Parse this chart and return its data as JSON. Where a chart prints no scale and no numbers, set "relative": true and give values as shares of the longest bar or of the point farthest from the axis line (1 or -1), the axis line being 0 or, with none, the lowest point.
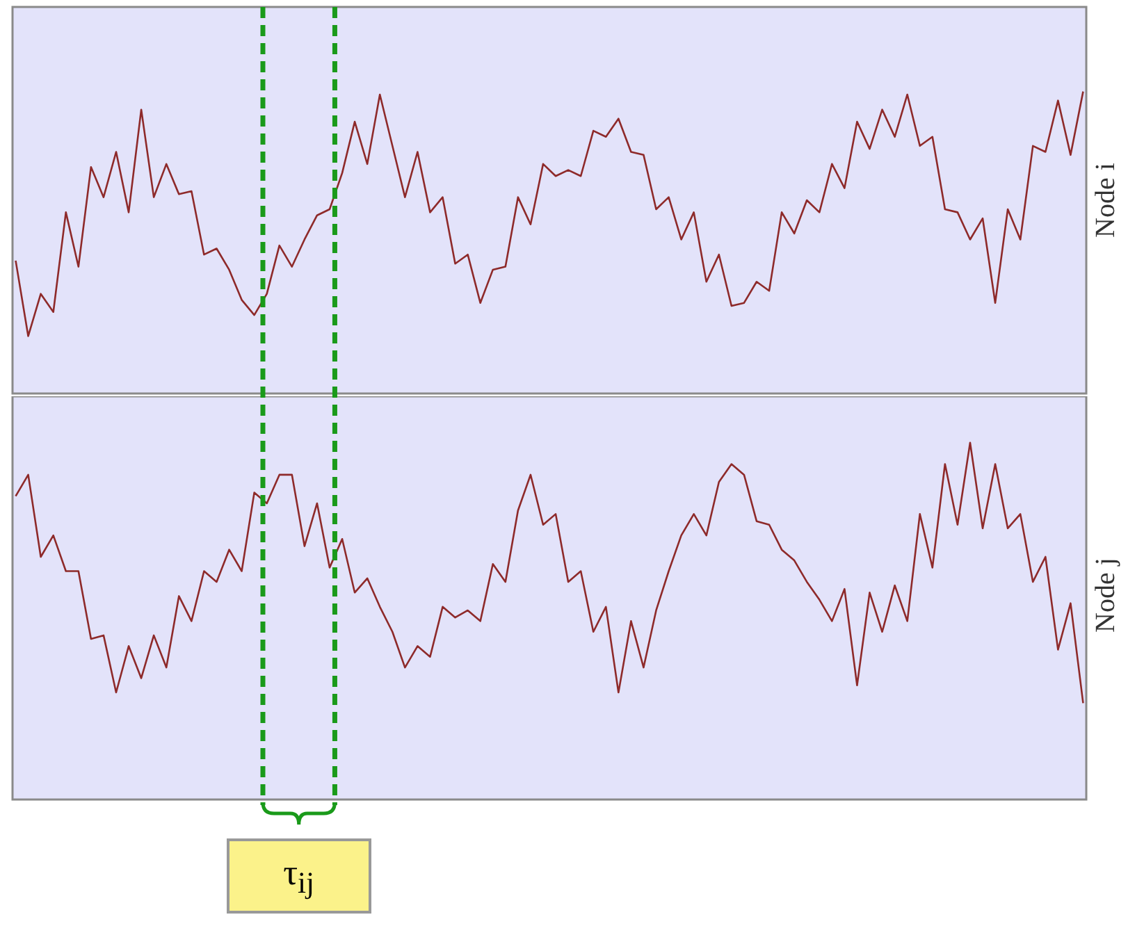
{
  "chart_data": [
    {
      "type": "line",
      "relative": true,
      "ylabel": "Node i",
      "line_style": "solid",
      "categories": [
        null,
        null,
        null,
        null,
        null,
        null,
        null,
        null,
        null,
        null,
        null,
        null,
        null,
        null,
        null,
        null,
        null,
        null,
        null,
        null,
        null,
        null,
        null,
        null,
        null,
        null,
        null,
        null,
        null,
        null,
        null,
        null,
        null,
        null,
        null,
        null,
        null,
        null,
        null,
        null,
        null,
        null,
        null,
        null,
        null,
        null,
        null,
        null,
        null,
        null,
        null,
        null,
        null,
        null,
        null,
        null,
        null,
        null,
        null,
        null,
        null,
        null,
        null,
        null,
        null,
        null,
        null,
        null,
        null,
        null,
        null,
        null,
        null,
        null,
        null,
        null,
        null,
        null,
        null,
        null,
        null,
        null,
        null,
        null,
        null,
        null
      ],
      "series": [
        {
          "color": "#8e2a2a",
          "values": [
            0.44,
            0.19,
            0.33,
            0.27,
            0.6,
            0.42,
            0.75,
            0.65,
            0.8,
            0.6,
            0.94,
            0.65,
            0.76,
            0.66,
            0.67,
            0.46,
            0.48,
            0.41,
            0.31,
            0.26,
            0.33,
            0.49,
            0.42,
            0.51,
            0.59,
            0.61,
            0.73,
            0.9,
            0.76,
            0.99,
            0.82,
            0.65,
            0.8,
            0.6,
            0.65,
            0.43,
            0.46,
            0.3,
            0.41,
            0.42,
            0.65,
            0.56,
            0.76,
            0.72,
            0.74,
            0.72,
            0.87,
            0.85,
            0.91,
            0.8,
            0.79,
            0.61,
            0.65,
            0.51,
            0.6,
            0.37,
            0.46,
            0.29,
            0.3,
            0.37,
            0.34,
            0.6,
            0.53,
            0.64,
            0.6,
            0.76,
            0.68,
            0.9,
            0.81,
            0.94,
            0.85,
            0.99,
            0.82,
            0.85,
            0.61,
            0.6,
            0.51,
            0.58,
            0.3,
            0.61,
            0.51,
            0.82,
            0.8,
            0.97,
            0.79,
            1.0
          ]
        }
      ]
    },
    {
      "type": "line",
      "relative": true,
      "ylabel": "Node j",
      "line_style": "solid",
      "categories": [
        null,
        null,
        null,
        null,
        null,
        null,
        null,
        null,
        null,
        null,
        null,
        null,
        null,
        null,
        null,
        null,
        null,
        null,
        null,
        null,
        null,
        null,
        null,
        null,
        null,
        null,
        null,
        null,
        null,
        null,
        null,
        null,
        null,
        null,
        null,
        null,
        null,
        null,
        null,
        null,
        null,
        null,
        null,
        null,
        null,
        null,
        null,
        null,
        null,
        null,
        null,
        null,
        null,
        null,
        null,
        null,
        null,
        null,
        null,
        null,
        null,
        null,
        null,
        null,
        null,
        null,
        null,
        null,
        null,
        null,
        null,
        null,
        null,
        null,
        null,
        null,
        null,
        null,
        null,
        null,
        null,
        null,
        null,
        null,
        null,
        null
      ],
      "series": [
        {
          "color": "#8e2a2a",
          "values": [
            0.85,
            0.91,
            0.68,
            0.74,
            0.64,
            0.64,
            0.45,
            0.46,
            0.3,
            0.43,
            0.34,
            0.46,
            0.37,
            0.57,
            0.5,
            0.64,
            0.61,
            0.7,
            0.64,
            0.86,
            0.83,
            0.91,
            0.91,
            0.71,
            0.83,
            0.65,
            0.73,
            0.58,
            0.62,
            0.54,
            0.47,
            0.37,
            0.43,
            0.4,
            0.54,
            0.51,
            0.53,
            0.5,
            0.66,
            0.61,
            0.81,
            0.91,
            0.77,
            0.8,
            0.61,
            0.64,
            0.47,
            0.54,
            0.3,
            0.5,
            0.37,
            0.53,
            0.64,
            0.74,
            0.8,
            0.74,
            0.89,
            0.94,
            0.91,
            0.78,
            0.77,
            0.7,
            0.67,
            0.61,
            0.56,
            0.5,
            0.59,
            0.32,
            0.58,
            0.47,
            0.6,
            0.5,
            0.8,
            0.65,
            0.94,
            0.77,
            1.0,
            0.76,
            0.94,
            0.76,
            0.8,
            0.61,
            0.68,
            0.42,
            0.55,
            0.27
          ]
        }
      ],
      "annotations": [
        "τ$_{ij}$"
      ]
    }
  ]
}
